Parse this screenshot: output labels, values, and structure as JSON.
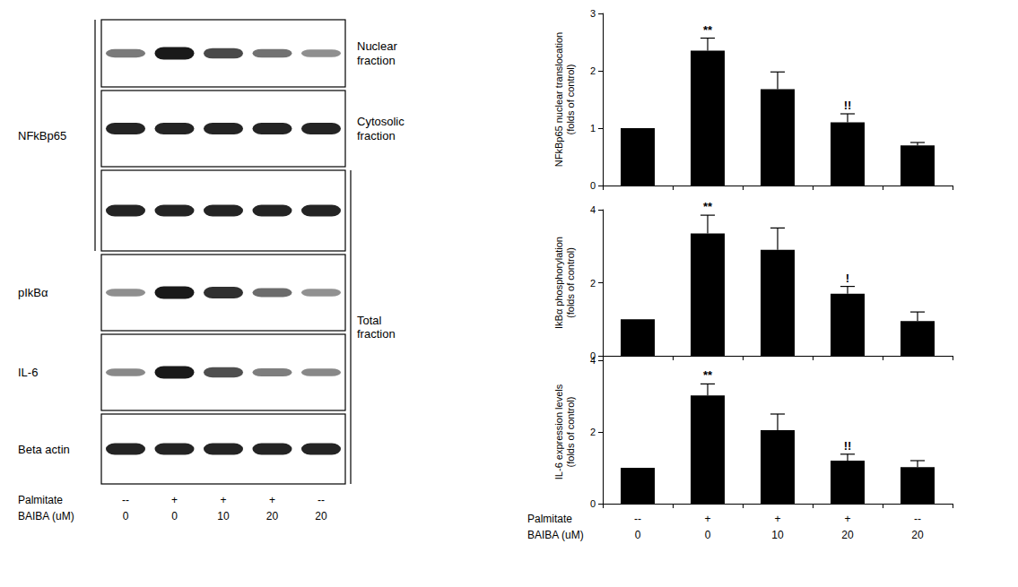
{
  "chart_data": [
    {
      "type": "bar",
      "ylabel": "NFkBp65 nuclear translocation\n(folds of control)",
      "values": [
        1,
        2.35,
        1.68,
        1.1,
        0.7
      ],
      "errors": [
        0,
        0.22,
        0.3,
        0.15,
        0.05
      ],
      "annotations": [
        null,
        "**",
        null,
        "!!",
        null
      ],
      "color": "#000000",
      "ylim": [
        0,
        3
      ],
      "yticks": [
        0,
        1,
        2,
        3
      ],
      "grid": false,
      "tick_labels": "y"
    },
    {
      "type": "bar",
      "ylabel": "IkBα phosphorylation\n(folds of control)",
      "values": [
        1,
        3.35,
        2.9,
        1.7,
        0.95
      ],
      "errors": [
        0,
        0.5,
        0.6,
        0.2,
        0.25
      ],
      "annotations": [
        null,
        "**",
        null,
        "!",
        null
      ],
      "color": "#000000",
      "ylim": [
        0,
        4
      ],
      "yticks": [
        0,
        2,
        4
      ],
      "grid": false,
      "tick_labels": "y"
    },
    {
      "type": "bar",
      "ylabel": "IL-6 expression levels\n(folds of control)",
      "values": [
        1,
        3.02,
        2.05,
        1.2,
        1.02
      ],
      "errors": [
        0,
        0.32,
        0.45,
        0.18,
        0.18
      ],
      "annotations": [
        null,
        "**",
        null,
        "!!",
        null
      ],
      "color": "#000000",
      "ylim": [
        0,
        4
      ],
      "yticks": [
        0,
        2,
        4
      ],
      "grid": false,
      "tick_labels": true
    }
  ],
  "conditions": [
    {
      "label": "Palmitate",
      "values": [
        "--",
        "+",
        "+",
        "+",
        "--"
      ]
    },
    {
      "label": "BAIBA (uM)",
      "values": [
        "0",
        "0",
        "10",
        "20",
        "20"
      ]
    }
  ],
  "blot": {
    "group_label": "NFkBp65",
    "panel_labels": [
      "Nuclear\nfraction",
      "Cytosolic\nfraction"
    ],
    "total_label": "Total\nfraction",
    "row_labels": [
      "pIkBα",
      "IL-6",
      "Beta actin"
    ]
  }
}
